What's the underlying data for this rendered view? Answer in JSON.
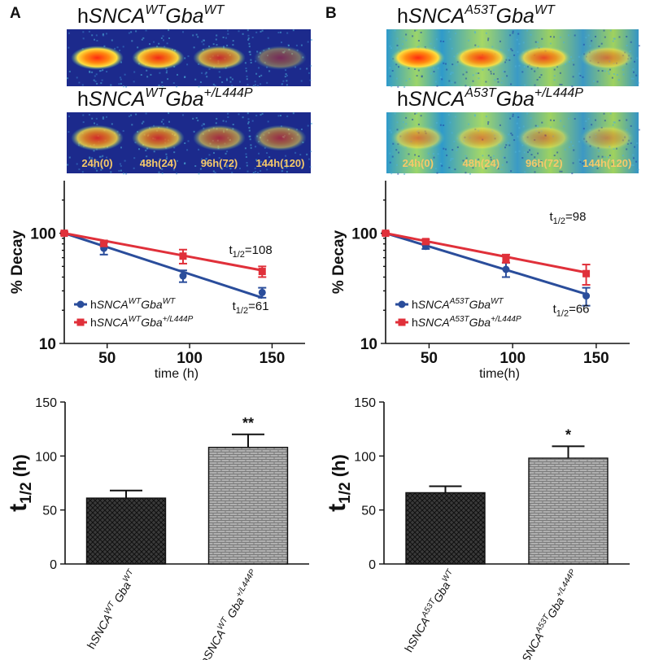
{
  "colors": {
    "blue": "#2a4d9b",
    "red": "#e0303a",
    "dark_bar": "#3a3a3a",
    "light_bar": "#a8a8a8",
    "blot_bg": "#1c2a8c",
    "label_yellow": "#f5c96a"
  },
  "panels": [
    {
      "letter": "A",
      "variant": "WT",
      "blot_top": {
        "title_parts": [
          {
            "text": "h",
            "italic": false,
            "sup": false
          },
          {
            "text": "SNCA",
            "italic": true,
            "sup": false
          },
          {
            "text": "WT",
            "italic": true,
            "sup": true
          },
          {
            "text": "Gba",
            "italic": true,
            "sup": false
          },
          {
            "text": "WT",
            "italic": true,
            "sup": true
          }
        ],
        "band_intensity": [
          1.0,
          0.95,
          0.75,
          0.4
        ]
      },
      "blot_bottom": {
        "title_parts": [
          {
            "text": "h",
            "italic": false,
            "sup": false
          },
          {
            "text": "SNCA",
            "italic": true,
            "sup": false
          },
          {
            "text": "WT",
            "italic": true,
            "sup": true
          },
          {
            "text": "Gba",
            "italic": true,
            "sup": false
          },
          {
            "text": "+/L444P",
            "italic": true,
            "sup": true
          }
        ],
        "band_intensity": [
          0.8,
          0.75,
          0.6,
          0.55
        ],
        "lane_labels": [
          "24h(0)",
          "48h(24)",
          "96h(72)",
          "144h(120)"
        ]
      }
    },
    {
      "letter": "B",
      "variant": "A53T",
      "blot_top": {
        "title_parts": [
          {
            "text": "h",
            "italic": false,
            "sup": false
          },
          {
            "text": "SNCA",
            "italic": true,
            "sup": false
          },
          {
            "text": "A53T",
            "italic": true,
            "sup": true
          },
          {
            "text": "Gba",
            "italic": true,
            "sup": false
          },
          {
            "text": "WT",
            "italic": true,
            "sup": true
          }
        ],
        "band_intensity": [
          1.0,
          0.9,
          0.8,
          0.55
        ]
      },
      "blot_bottom": {
        "title_parts": [
          {
            "text": "h",
            "italic": false,
            "sup": false
          },
          {
            "text": "SNCA",
            "italic": true,
            "sup": false
          },
          {
            "text": "A53T",
            "italic": true,
            "sup": true
          },
          {
            "text": "Gba",
            "italic": true,
            "sup": false
          },
          {
            "text": "+/L444P",
            "italic": true,
            "sup": true
          }
        ],
        "band_intensity": [
          0.55,
          0.5,
          0.45,
          0.4
        ],
        "lane_labels": [
          "24h(0)",
          "48h(24)",
          "96h(72)",
          "144h(120)"
        ]
      }
    }
  ],
  "chart_data": [
    {
      "type": "line",
      "panel": "A",
      "title": "",
      "xlabel": "time (h)",
      "ylabel": "% Decay",
      "yscale": "log",
      "xlim": [
        24,
        170
      ],
      "ylim": [
        10,
        300
      ],
      "xticks": [
        50,
        100,
        150
      ],
      "yticks": [
        10,
        100
      ],
      "series": [
        {
          "name": "hSNCA WT Gba WT",
          "color": "blue",
          "marker": "circle",
          "x": [
            24,
            48,
            96,
            144
          ],
          "y": [
            100,
            73,
            41,
            29
          ],
          "err": [
            3,
            9,
            5,
            3
          ],
          "fit": {
            "x": [
              24,
              144
            ],
            "y": [
              100,
              26
            ]
          }
        },
        {
          "name": "hSNCA WT Gba +/L444P",
          "color": "red",
          "marker": "square",
          "x": [
            24,
            48,
            96,
            144
          ],
          "y": [
            100,
            81,
            62,
            45
          ],
          "err": [
            3,
            5,
            9,
            5
          ],
          "fit": {
            "x": [
              24,
              144
            ],
            "y": [
              100,
              46
            ]
          }
        }
      ],
      "legend_parts": [
        [
          {
            "text": "h",
            "italic": false,
            "sup": false
          },
          {
            "text": "SNCA",
            "italic": true,
            "sup": false
          },
          {
            "text": "WT",
            "italic": true,
            "sup": true
          },
          {
            "text": "Gba",
            "italic": true,
            "sup": false
          },
          {
            "text": "WT",
            "italic": true,
            "sup": true
          }
        ],
        [
          {
            "text": "h",
            "italic": false,
            "sup": false
          },
          {
            "text": "SNCA",
            "italic": true,
            "sup": false
          },
          {
            "text": "WT",
            "italic": true,
            "sup": true
          },
          {
            "text": "Gba",
            "italic": true,
            "sup": false
          },
          {
            "text": "+/L444P",
            "italic": true,
            "sup": true
          }
        ]
      ],
      "annotations": [
        {
          "label": "t",
          "sub": "1/2",
          "value": "=108",
          "at": [
            137,
            65
          ]
        },
        {
          "label": "t",
          "sub": "1/2",
          "value": "=61",
          "at": [
            137,
            20
          ]
        }
      ]
    },
    {
      "type": "line",
      "panel": "B",
      "title": "",
      "xlabel": "time(h)",
      "ylabel": "% Decay",
      "yscale": "log",
      "xlim": [
        24,
        170
      ],
      "ylim": [
        10,
        300
      ],
      "xticks": [
        50,
        100,
        150
      ],
      "yticks": [
        10,
        100
      ],
      "series": [
        {
          "name": "hSNCA A53T Gba WT",
          "color": "blue",
          "marker": "circle",
          "x": [
            24,
            48,
            96,
            144
          ],
          "y": [
            100,
            76,
            47,
            27
          ],
          "err": [
            3,
            4,
            7,
            5
          ],
          "fit": {
            "x": [
              24,
              144
            ],
            "y": [
              100,
              28
            ]
          }
        },
        {
          "name": "hSNCA A53T Gba +/L444P",
          "color": "red",
          "marker": "square",
          "x": [
            24,
            48,
            96,
            144
          ],
          "y": [
            100,
            84,
            59,
            43
          ],
          "err": [
            3,
            4,
            5,
            9
          ],
          "fit": {
            "x": [
              24,
              144
            ],
            "y": [
              100,
              44
            ]
          }
        }
      ],
      "legend_parts": [
        [
          {
            "text": "h",
            "italic": false,
            "sup": false
          },
          {
            "text": "SNCA",
            "italic": true,
            "sup": false
          },
          {
            "text": "A53T",
            "italic": true,
            "sup": true
          },
          {
            "text": "Gba",
            "italic": true,
            "sup": false
          },
          {
            "text": "WT",
            "italic": true,
            "sup": true
          }
        ],
        [
          {
            "text": "h",
            "italic": false,
            "sup": false
          },
          {
            "text": "SNCA",
            "italic": true,
            "sup": false
          },
          {
            "text": "A53T",
            "italic": true,
            "sup": true
          },
          {
            "text": "Gba",
            "italic": true,
            "sup": false
          },
          {
            "text": "+/L444P",
            "italic": true,
            "sup": true
          }
        ]
      ],
      "annotations": [
        {
          "label": "t",
          "sub": "1/2",
          "value": "=98",
          "at": [
            133,
            130
          ]
        },
        {
          "label": "t",
          "sub": "1/2",
          "value": "=66",
          "at": [
            135,
            19
          ]
        }
      ]
    },
    {
      "type": "bar",
      "panel": "A",
      "title": "",
      "xlabel": "",
      "ylabel": "t1/2 (h)",
      "ylabel_parts": {
        "main": "t",
        "sub": "1/2",
        "rest": " (h)"
      },
      "ylim": [
        0,
        150
      ],
      "yticks": [
        0,
        50,
        100,
        150
      ],
      "values": [
        61,
        108
      ],
      "errors": [
        7,
        12
      ],
      "significance": [
        "",
        "**"
      ],
      "fills": [
        "dark_bar",
        "light_bar"
      ],
      "category_parts": [
        [
          {
            "text": "h",
            "italic": false,
            "sup": false
          },
          {
            "text": "SNCA",
            "italic": true,
            "sup": false
          },
          {
            "text": "WT",
            "italic": true,
            "sup": true
          },
          {
            "text": " Gba",
            "italic": true,
            "sup": false
          },
          {
            "text": "WT",
            "italic": true,
            "sup": true
          }
        ],
        [
          {
            "text": "h",
            "italic": false,
            "sup": false
          },
          {
            "text": "SNCA",
            "italic": true,
            "sup": false
          },
          {
            "text": "WT",
            "italic": true,
            "sup": true
          },
          {
            "text": " Gba",
            "italic": true,
            "sup": false
          },
          {
            "text": "+/L444P",
            "italic": true,
            "sup": true
          }
        ]
      ]
    },
    {
      "type": "bar",
      "panel": "B",
      "title": "",
      "xlabel": "",
      "ylabel": "t1/2 (h)",
      "ylabel_parts": {
        "main": "t",
        "sub": "1/2",
        "rest": " (h)"
      },
      "ylim": [
        0,
        150
      ],
      "yticks": [
        0,
        50,
        100,
        150
      ],
      "values": [
        66,
        98
      ],
      "errors": [
        6,
        11
      ],
      "significance": [
        "",
        "*"
      ],
      "fills": [
        "dark_bar",
        "light_bar"
      ],
      "category_parts": [
        [
          {
            "text": "h",
            "italic": false,
            "sup": false
          },
          {
            "text": "SNCA",
            "italic": true,
            "sup": false
          },
          {
            "text": "A53T",
            "italic": true,
            "sup": true
          },
          {
            "text": "Gba",
            "italic": true,
            "sup": false
          },
          {
            "text": "WT",
            "italic": true,
            "sup": true
          }
        ],
        [
          {
            "text": "h",
            "italic": false,
            "sup": false
          },
          {
            "text": "SNCA",
            "italic": true,
            "sup": false
          },
          {
            "text": "A53T",
            "italic": true,
            "sup": true
          },
          {
            "text": "Gba",
            "italic": true,
            "sup": false
          },
          {
            "text": "+/L444P",
            "italic": true,
            "sup": true
          }
        ]
      ]
    }
  ]
}
